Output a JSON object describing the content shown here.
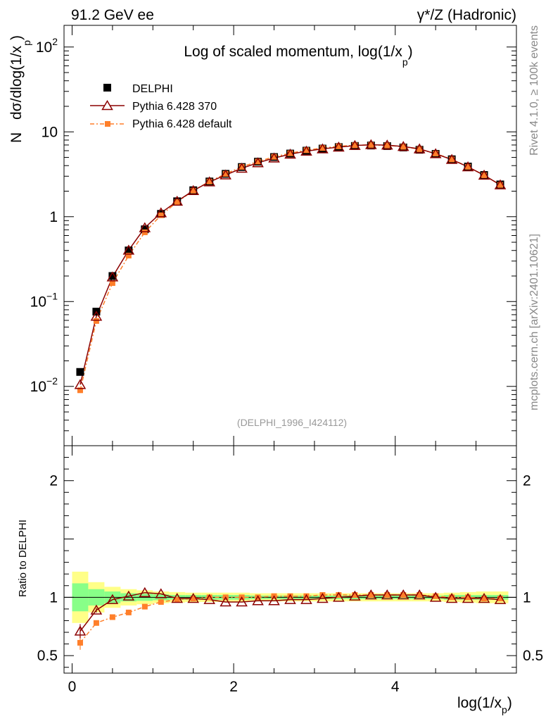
{
  "header": {
    "left": "91.2 GeV ee",
    "right": "γ*/Z (Hadronic)"
  },
  "side_labels": {
    "rivet": "Rivet 4.1.0, ≥ 100k events",
    "mcplots": "mcplots.cern.ch [arXiv:2401.10621]"
  },
  "chart_data": [
    {
      "type": "scatter",
      "panel": "main",
      "title": "Log of scaled momentum, log(1/x_p)",
      "title_main": "Log of scaled momentum, log(1/x",
      "title_sub": "p",
      "title_close": ")",
      "ylabel_prefix": "N",
      "ylabel_main": "dσ/dlog(1/x",
      "ylabel_sub": "p",
      "ylabel_close": ")",
      "yscale": "log",
      "xlim": [
        -0.1,
        5.5
      ],
      "ylim": [
        0.002,
        180
      ],
      "y_tick_labels": [
        {
          "value": 0.01,
          "base": "10",
          "exp": "−2"
        },
        {
          "value": 0.1,
          "base": "10",
          "exp": "−1"
        },
        {
          "value": 1,
          "base": "1",
          "exp": ""
        },
        {
          "value": 10,
          "base": "10",
          "exp": ""
        },
        {
          "value": 100,
          "base": "10",
          "exp": "2"
        }
      ],
      "watermark": "(DELPHI_1996_I424112)",
      "legend": [
        {
          "label": "DELPHI",
          "color": "#000000",
          "marker": "filled-square"
        },
        {
          "label": "Pythia 6.428 370",
          "color": "#8b0000",
          "marker": "open-triangle"
        },
        {
          "label": "Pythia 6.428 default",
          "color": "#ff7f2a",
          "marker": "filled-square-small"
        }
      ],
      "x": [
        0.1,
        0.3,
        0.5,
        0.7,
        0.9,
        1.1,
        1.3,
        1.5,
        1.7,
        1.9,
        2.1,
        2.3,
        2.5,
        2.7,
        2.9,
        3.1,
        3.3,
        3.5,
        3.7,
        3.9,
        4.1,
        4.3,
        4.5,
        4.7,
        4.9,
        5.1,
        5.3
      ],
      "series": [
        {
          "name": "DELPHI",
          "color": "#000000",
          "values": [
            0.0148,
            0.076,
            0.2,
            0.4,
            0.71,
            1.08,
            1.52,
            2.05,
            2.6,
            3.2,
            3.85,
            4.45,
            5.05,
            5.55,
            6.0,
            6.35,
            6.62,
            6.82,
            6.9,
            6.8,
            6.55,
            6.15,
            5.5,
            4.75,
            3.9,
            3.1,
            2.4
          ]
        },
        {
          "name": "Pythia 6.428 370",
          "color": "#8b0000",
          "values": [
            0.0105,
            0.067,
            0.195,
            0.403,
            0.74,
            1.11,
            1.52,
            2.03,
            2.57,
            3.1,
            3.72,
            4.32,
            4.91,
            5.45,
            5.92,
            6.3,
            6.6,
            6.9,
            7.05,
            6.98,
            6.72,
            6.3,
            5.52,
            4.72,
            3.87,
            3.08,
            2.37
          ]
        },
        {
          "name": "Pythia 6.428 default",
          "color": "#ff7f2a",
          "values": [
            0.009,
            0.059,
            0.165,
            0.348,
            0.655,
            1.04,
            1.49,
            2.03,
            2.6,
            3.2,
            3.87,
            4.47,
            5.08,
            5.6,
            6.08,
            6.45,
            6.75,
            6.95,
            7.02,
            6.93,
            6.68,
            6.25,
            5.55,
            4.74,
            3.88,
            3.08,
            2.37
          ]
        }
      ]
    },
    {
      "type": "scatter",
      "panel": "ratio",
      "ylabel": "Ratio to DELPHI",
      "xlabel_main": "log(1/x",
      "xlabel_sub": "p",
      "xlabel_close": ")",
      "xlim": [
        -0.1,
        5.5
      ],
      "ylim": [
        0.35,
        2.3
      ],
      "x_tick_labels": [
        {
          "value": 0,
          "label": "0"
        },
        {
          "value": 2,
          "label": "2"
        },
        {
          "value": 4,
          "label": "4"
        }
      ],
      "y_tick_labels": [
        {
          "value": 0.5,
          "label": "0.5"
        },
        {
          "value": 1,
          "label": "1"
        },
        {
          "value": 2,
          "label": "2"
        }
      ],
      "x": [
        0.1,
        0.3,
        0.5,
        0.7,
        0.9,
        1.1,
        1.3,
        1.5,
        1.7,
        1.9,
        2.1,
        2.3,
        2.5,
        2.7,
        2.9,
        3.1,
        3.3,
        3.5,
        3.7,
        3.9,
        4.1,
        4.3,
        4.5,
        4.7,
        4.9,
        5.1,
        5.3
      ],
      "bin_edges": [
        0.0,
        0.2,
        0.4,
        0.6,
        0.8,
        1.0,
        1.2,
        1.4,
        1.6,
        1.8,
        2.0,
        2.2,
        2.4,
        2.6,
        2.8,
        3.0,
        3.2,
        3.4,
        3.6,
        3.8,
        4.0,
        4.2,
        4.4,
        4.6,
        4.8,
        5.0,
        5.2,
        5.4
      ],
      "band_stat": [
        0.12,
        0.07,
        0.05,
        0.035,
        0.03,
        0.025,
        0.02,
        0.02,
        0.02,
        0.02,
        0.02,
        0.015,
        0.015,
        0.015,
        0.015,
        0.015,
        0.015,
        0.015,
        0.015,
        0.015,
        0.015,
        0.015,
        0.015,
        0.02,
        0.02,
        0.02,
        0.02
      ],
      "band_total": [
        0.22,
        0.13,
        0.09,
        0.07,
        0.06,
        0.05,
        0.045,
        0.04,
        0.04,
        0.04,
        0.04,
        0.035,
        0.035,
        0.035,
        0.035,
        0.035,
        0.035,
        0.035,
        0.035,
        0.035,
        0.035,
        0.035,
        0.035,
        0.04,
        0.045,
        0.05,
        0.05
      ],
      "band_colors": {
        "stat": "#88ff88",
        "total": "#ffff88"
      },
      "series": [
        {
          "name": "Pythia 6.428 370",
          "color": "#8b0000",
          "values": [
            0.71,
            0.89,
            0.98,
            1.01,
            1.04,
            1.03,
            0.99,
            0.99,
            0.98,
            0.96,
            0.96,
            0.97,
            0.97,
            0.98,
            0.98,
            0.99,
            1.0,
            1.01,
            1.02,
            1.02,
            1.02,
            1.02,
            1.0,
            0.99,
            0.99,
            0.99,
            0.98
          ]
        },
        {
          "name": "Pythia 6.428 default",
          "color": "#ff7f2a",
          "values": [
            0.61,
            0.78,
            0.83,
            0.87,
            0.92,
            0.96,
            0.98,
            0.99,
            1.0,
            1.0,
            1.0,
            1.0,
            1.01,
            1.01,
            1.01,
            1.02,
            1.02,
            1.02,
            1.02,
            1.02,
            1.02,
            1.02,
            1.01,
            1.0,
            1.0,
            0.99,
            0.99
          ]
        }
      ]
    }
  ]
}
